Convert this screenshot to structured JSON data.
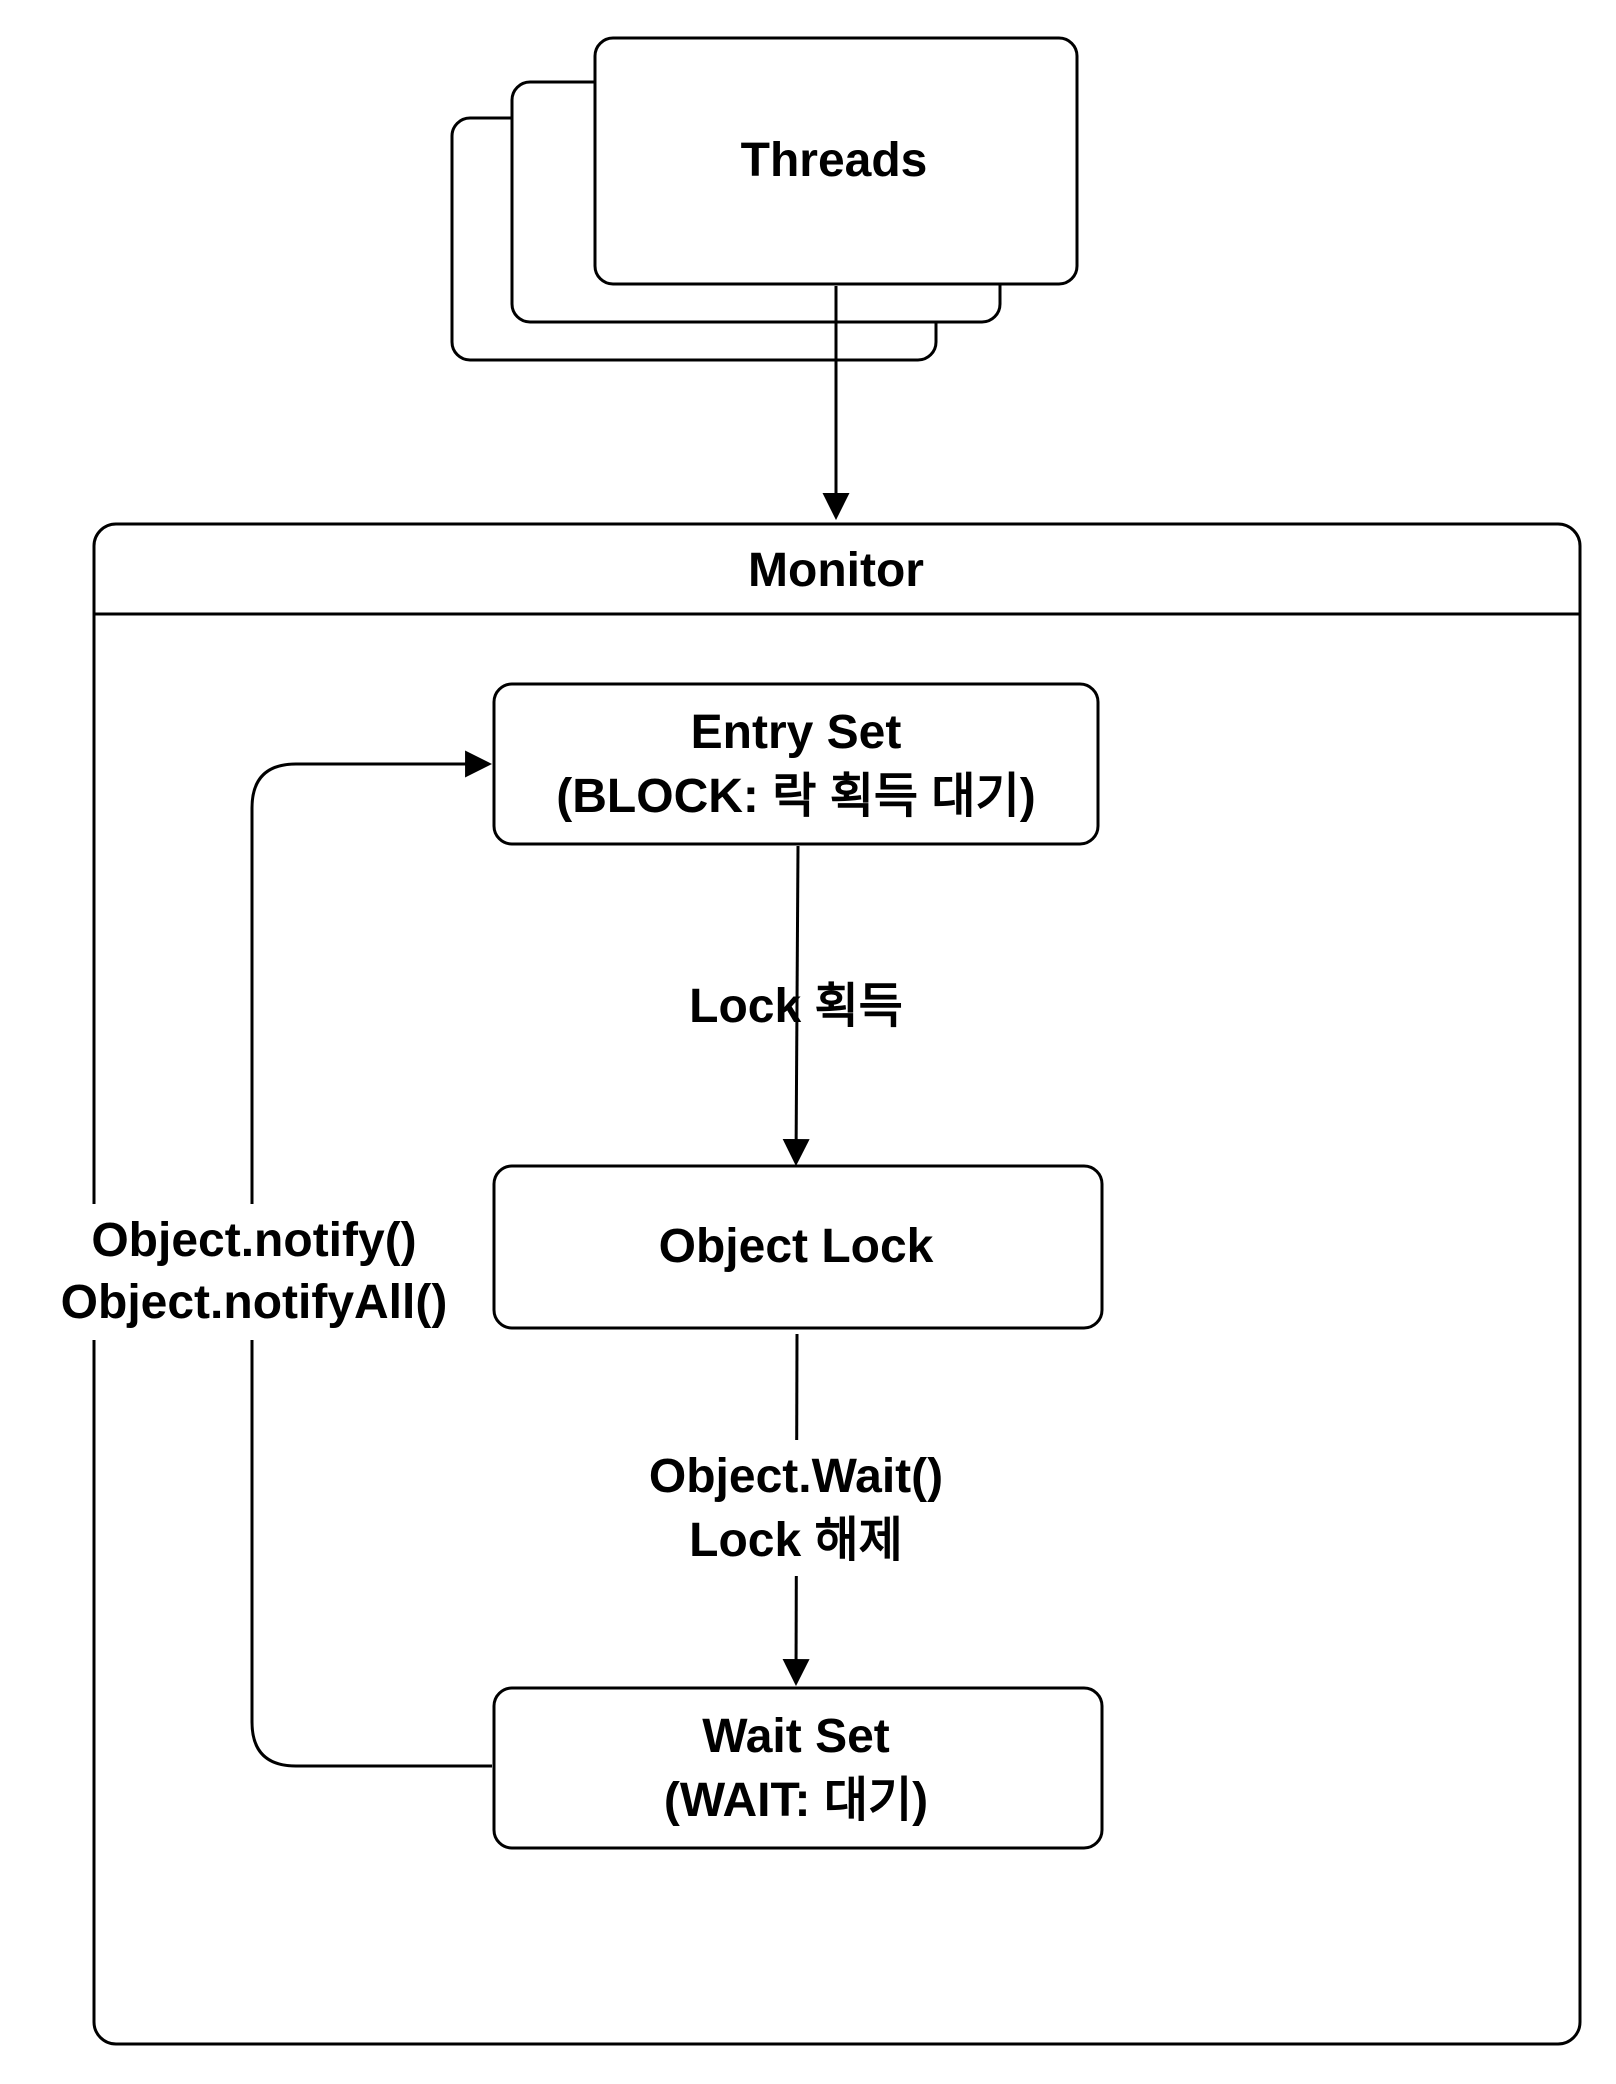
{
  "colors": {
    "stroke": "#000000",
    "fill": "#ffffff",
    "text": "#000000"
  },
  "threads": {
    "label": "Threads"
  },
  "monitor": {
    "title": "Monitor"
  },
  "entry_set": {
    "line1": "Entry Set",
    "line2": "(BLOCK: 락 획득 대기)"
  },
  "object_lock": {
    "label": "Object Lock"
  },
  "wait_set": {
    "line1": "Wait Set",
    "line2": "(WAIT: 대기)"
  },
  "edges": {
    "lock_acquire": {
      "label": "Lock 획득"
    },
    "wait_release": {
      "line1": "Object.Wait()",
      "line2": "Lock 해제"
    },
    "notify": {
      "line1": "Object.notify()",
      "line2": "Object.notifyAll()"
    }
  }
}
